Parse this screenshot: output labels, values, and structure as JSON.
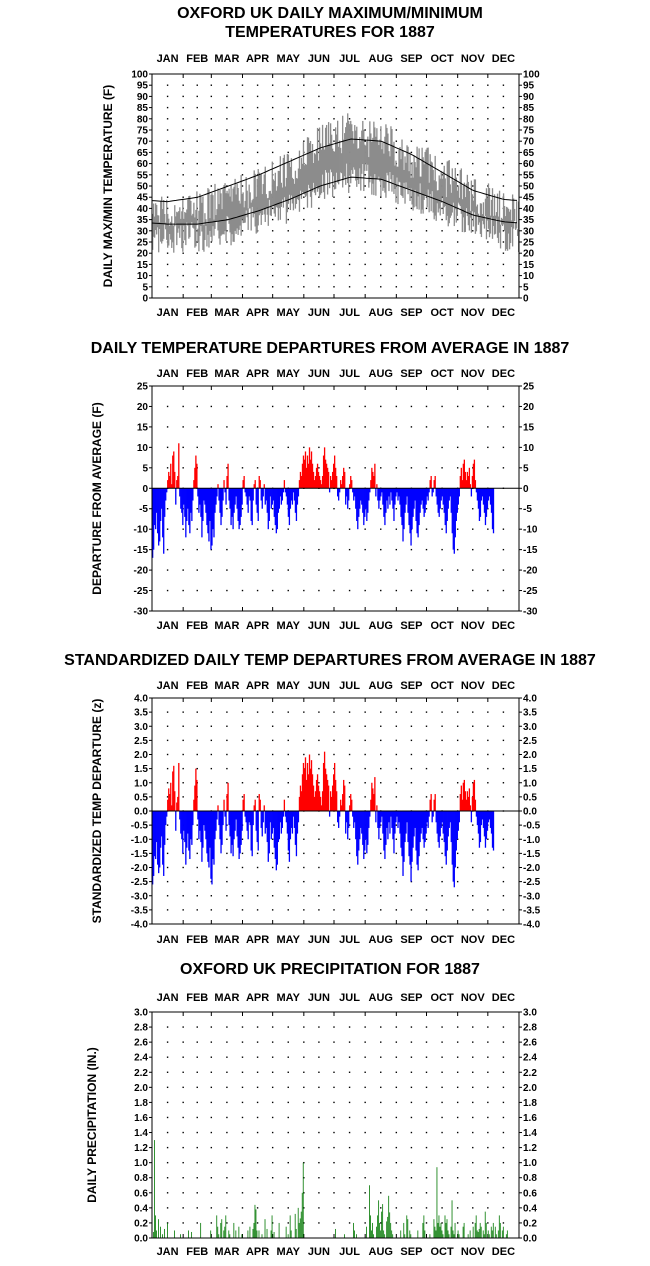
{
  "colors": {
    "range_fill": "#8c8c8c",
    "above_avg": "#ff0000",
    "below_avg": "#0000ff",
    "precip": "#007700",
    "normal_line": "#000000"
  },
  "months": [
    "JAN",
    "FEB",
    "MAR",
    "APR",
    "MAY",
    "JUN",
    "JUL",
    "AUG",
    "SEP",
    "OCT",
    "NOV",
    "DEC"
  ],
  "chart_data": [
    {
      "id": "maxmin",
      "type": "area",
      "title_lines": [
        "OXFORD UK DAILY MAXIMUM/MINIMUM",
        "TEMPERATURES FOR 1887"
      ],
      "ylabel": "DAILY MAX/MIN TEMPERATURE (F)",
      "ylim": [
        0,
        100
      ],
      "ytick_step": 5,
      "ytick_decimals": 0,
      "grid": "dotted",
      "series": [
        {
          "kind": "daily_max_min_band",
          "monthly_approx_max": [
            37,
            40,
            44,
            52,
            58,
            70,
            74,
            70,
            62,
            55,
            45,
            40
          ],
          "monthly_approx_min": [
            27,
            27,
            30,
            36,
            40,
            50,
            54,
            52,
            46,
            40,
            32,
            28
          ]
        },
        {
          "kind": "normal_high_curve",
          "monthly_values": [
            43,
            45,
            50,
            55,
            61,
            67,
            71,
            70,
            64,
            56,
            48,
            44
          ]
        },
        {
          "kind": "normal_low_curve",
          "monthly_values": [
            33,
            33,
            35,
            39,
            44,
            50,
            54,
            53,
            48,
            43,
            37,
            34
          ]
        }
      ]
    },
    {
      "id": "departure",
      "type": "bar",
      "title_lines": [
        "DAILY TEMPERATURE DEPARTURES FROM AVERAGE IN 1887"
      ],
      "ylabel": "DEPARTURE FROM AVERAGE (F)",
      "ylim": [
        -30,
        25
      ],
      "ytick_step": 5,
      "ytick_decimals": 0,
      "grid": "dotted",
      "values": [
        -17,
        -15,
        -9,
        -10,
        -6,
        -11,
        -14,
        -13,
        -8,
        -5,
        -12,
        -16,
        -7,
        -3,
        -1,
        2,
        4,
        3,
        6,
        1,
        8,
        9,
        4,
        -4,
        2,
        3,
        11,
        -2,
        -5,
        -6,
        -9,
        -4,
        -7,
        -12,
        -8,
        -5,
        -9,
        -11,
        -6,
        -8,
        -3,
        2,
        5,
        8,
        6,
        -2,
        -6,
        -4,
        -7,
        -12,
        -8,
        -3,
        -4,
        -6,
        -9,
        -11,
        -13,
        -8,
        -15,
        -14,
        -10,
        -12,
        -6,
        -4,
        -2,
        1,
        -3,
        -6,
        -9,
        -7,
        -3,
        2,
        -1,
        -4,
        3,
        6,
        -3,
        -5,
        -9,
        -7,
        -10,
        -6,
        -4,
        -2,
        -5,
        -8,
        -10,
        -9,
        -7,
        -4,
        2,
        3,
        -1,
        -2,
        -4,
        -6,
        -2,
        -3,
        -8,
        -9,
        -3,
        1,
        2,
        -4,
        -6,
        -8,
        3,
        2,
        -3,
        -5,
        -2,
        1,
        -4,
        -3,
        -6,
        -10,
        -8,
        -2,
        -5,
        -4,
        -3,
        -7,
        -9,
        -11,
        -10,
        -6,
        -5,
        -2,
        -4,
        -3,
        -1,
        2,
        -1,
        -2,
        -4,
        -7,
        -9,
        -5,
        -3,
        -4,
        -1,
        -3,
        -6,
        -8,
        -4,
        -2,
        2,
        4,
        3,
        6,
        8,
        7,
        9,
        5,
        8,
        6,
        10,
        7,
        9,
        6,
        4,
        2,
        3,
        5,
        6,
        4,
        3,
        2,
        1,
        3,
        8,
        10,
        7,
        6,
        5,
        4,
        -1,
        3,
        2,
        4,
        6,
        8,
        5,
        3,
        -2,
        -3,
        -1,
        2,
        1,
        3,
        5,
        4,
        -4,
        -2,
        -5,
        -3,
        1,
        3,
        2,
        -1,
        -3,
        -2,
        -5,
        -8,
        -10,
        -7,
        -5,
        -3,
        -4,
        -6,
        -9,
        -7,
        -5,
        -8,
        -6,
        -3,
        -1,
        2,
        5,
        4,
        3,
        6,
        -2,
        1,
        -3,
        -5,
        -3,
        -2,
        -1,
        -4,
        -7,
        -9,
        -6,
        -3,
        -5,
        -2,
        -4,
        -1,
        -3,
        -5,
        -8,
        -4,
        -2,
        -1,
        -3,
        -2,
        -4,
        -7,
        -9,
        -13,
        -10,
        -6,
        -4,
        -2,
        -6,
        -9,
        -11,
        -14,
        -10,
        -7,
        -5,
        -3,
        -8,
        -11,
        -12,
        -9,
        -6,
        -4,
        -3,
        -5,
        -7,
        -6,
        -4,
        -2,
        -3,
        -1,
        2,
        3,
        -2,
        -1,
        2,
        3,
        -2,
        -4,
        -6,
        -7,
        -5,
        -3,
        -2,
        -4,
        -6,
        -9,
        -11,
        -8,
        -5,
        -3,
        -2,
        -6,
        -11,
        -15,
        -16,
        -12,
        -8,
        -6,
        -4,
        -2,
        3,
        5,
        2,
        6,
        7,
        4,
        2,
        4,
        3,
        5,
        1,
        -2,
        3,
        6,
        7,
        2,
        -1,
        -3,
        -5,
        -8,
        -7,
        -3,
        -2,
        -4,
        -6,
        -9,
        -7,
        -5,
        -3,
        -2,
        -4,
        -6,
        -10,
        -11
      ]
    },
    {
      "id": "standardized",
      "type": "bar",
      "title_lines": [
        "STANDARDIZED DAILY TEMP DEPARTURES FROM AVERAGE IN 1887"
      ],
      "ylabel": "STANDARDIZED TEMP DEPARTURE (z)",
      "ylim": [
        -4.0,
        4.0
      ],
      "ytick_step": 0.5,
      "ytick_decimals": 1,
      "grid": "dotted",
      "values": [
        -2.6,
        -2.3,
        -1.6,
        -1.7,
        -1.1,
        -1.9,
        -2.2,
        -2.0,
        -1.3,
        -0.9,
        -1.9,
        -2.3,
        -1.2,
        -0.5,
        -0.2,
        0.4,
        0.8,
        0.6,
        1.0,
        0.2,
        1.4,
        1.6,
        0.7,
        -0.7,
        0.3,
        0.5,
        1.7,
        -0.3,
        -0.8,
        -1.0,
        -1.5,
        -0.7,
        -1.1,
        -1.9,
        -1.3,
        -0.8,
        -1.4,
        -1.7,
        -1.0,
        -1.2,
        -0.5,
        0.4,
        0.9,
        1.5,
        1.1,
        -0.3,
        -1.0,
        -0.7,
        -1.1,
        -1.8,
        -1.3,
        -0.5,
        -0.7,
        -1.0,
        -1.5,
        -1.8,
        -2.0,
        -1.3,
        -2.4,
        -2.6,
        -1.7,
        -1.9,
        -1.0,
        -0.7,
        -0.3,
        0.2,
        -0.5,
        -1.0,
        -1.5,
        -1.2,
        -0.5,
        0.4,
        -0.2,
        -0.7,
        0.6,
        1.0,
        -0.5,
        -0.9,
        -1.5,
        -1.2,
        -1.6,
        -1.0,
        -0.7,
        -0.3,
        -0.9,
        -1.3,
        -1.7,
        -1.5,
        -1.2,
        -0.7,
        0.4,
        0.6,
        -0.2,
        -0.4,
        -0.7,
        -1.0,
        -0.4,
        -0.5,
        -1.4,
        -1.6,
        -0.5,
        0.2,
        0.4,
        -0.7,
        -1.1,
        -1.4,
        0.6,
        0.4,
        -0.6,
        -0.9,
        -0.4,
        0.2,
        -0.8,
        -0.6,
        -1.1,
        -1.8,
        -1.5,
        -0.4,
        -1.0,
        -0.8,
        -0.6,
        -1.3,
        -1.7,
        -2.1,
        -1.9,
        -1.1,
        -1.0,
        -0.4,
        -0.8,
        -0.6,
        -0.2,
        0.4,
        -0.2,
        -0.4,
        -0.8,
        -1.4,
        -1.8,
        -1.0,
        -0.6,
        -0.8,
        -0.2,
        -0.6,
        -1.2,
        -1.6,
        -0.8,
        -0.4,
        0.5,
        0.9,
        0.7,
        1.3,
        1.7,
        1.5,
        1.9,
        1.1,
        1.7,
        1.3,
        2.0,
        1.5,
        1.8,
        1.3,
        0.9,
        0.5,
        0.7,
        1.1,
        1.3,
        0.9,
        0.7,
        0.5,
        0.2,
        0.7,
        1.7,
        2.1,
        1.5,
        1.3,
        1.1,
        0.9,
        -0.2,
        0.7,
        0.5,
        0.9,
        1.3,
        1.7,
        1.1,
        0.7,
        -0.4,
        -0.6,
        -0.2,
        0.4,
        0.2,
        0.6,
        1.1,
        0.9,
        -0.8,
        -0.4,
        -1.0,
        -0.6,
        0.2,
        0.6,
        0.4,
        -0.2,
        -0.6,
        -0.4,
        -1.0,
        -1.6,
        -1.9,
        -1.4,
        -1.0,
        -0.6,
        -0.8,
        -1.2,
        -1.7,
        -1.4,
        -1.0,
        -1.5,
        -1.2,
        -0.6,
        -0.2,
        0.4,
        1.0,
        0.8,
        0.6,
        1.2,
        -0.4,
        0.2,
        -0.6,
        -1.0,
        -0.6,
        -0.4,
        -0.2,
        -0.8,
        -1.4,
        -1.7,
        -1.2,
        -0.6,
        -1.0,
        -0.4,
        -0.8,
        -0.2,
        -0.6,
        -1.0,
        -1.5,
        -0.8,
        -0.4,
        -0.2,
        -0.6,
        -0.4,
        -0.8,
        -1.3,
        -1.6,
        -2.3,
        -1.8,
        -1.1,
        -0.8,
        -0.4,
        -1.1,
        -1.6,
        -1.9,
        -2.5,
        -1.8,
        -1.3,
        -0.9,
        -0.6,
        -1.4,
        -1.9,
        -2.1,
        -1.6,
        -1.1,
        -0.8,
        -0.6,
        -1.0,
        -1.3,
        -1.1,
        -0.8,
        -0.4,
        -0.6,
        -0.2,
        0.4,
        0.6,
        -0.4,
        -0.2,
        0.4,
        0.6,
        -0.4,
        -0.8,
        -1.1,
        -1.3,
        -0.9,
        -0.6,
        -0.4,
        -0.8,
        -1.1,
        -1.6,
        -1.9,
        -1.4,
        -0.9,
        -0.6,
        -0.4,
        -1.1,
        -1.9,
        -2.5,
        -2.7,
        -2.0,
        -1.4,
        -1.0,
        -0.7,
        -0.4,
        0.6,
        0.9,
        0.4,
        1.0,
        1.1,
        0.7,
        0.4,
        0.7,
        0.5,
        0.8,
        0.2,
        -0.4,
        0.5,
        1.0,
        1.1,
        0.4,
        -0.2,
        -0.5,
        -0.8,
        -1.3,
        -1.1,
        -0.5,
        -0.3,
        -0.6,
        -0.9,
        -1.3,
        -1.0,
        -0.7,
        -0.4,
        -0.3,
        -0.6,
        -0.8,
        -1.3,
        -1.4
      ]
    },
    {
      "id": "precip",
      "type": "bar",
      "title_lines": [
        "OXFORD UK PRECIPITATION FOR 1887"
      ],
      "ylabel": "DAILY PRECIPITATION (IN.)",
      "ylim": [
        0,
        3.0
      ],
      "ytick_step": 0.2,
      "ytick_decimals": 1,
      "grid": "dotted",
      "values": [
        0,
        0.08,
        1.3,
        0.3,
        0.1,
        0,
        0.25,
        0,
        0.15,
        0,
        0.05,
        0,
        0.12,
        0,
        0,
        0.2,
        0,
        0,
        0,
        0,
        0,
        0,
        0.1,
        0,
        0,
        0,
        0,
        0,
        0.05,
        0,
        0,
        0,
        0,
        0,
        0,
        0,
        0.1,
        0,
        0,
        0.08,
        0,
        0,
        0,
        0,
        0,
        0,
        0,
        0,
        0.2,
        0,
        0,
        0,
        0,
        0,
        0,
        0,
        0,
        0,
        0.1,
        0,
        0,
        0,
        0,
        0,
        0.3,
        0.15,
        0.05,
        0,
        0.2,
        0.25,
        0,
        0.1,
        0.15,
        0.3,
        0,
        0,
        0.1,
        0.05,
        0,
        0,
        0,
        0.2,
        0,
        0.1,
        0,
        0,
        0.15,
        0,
        0,
        0.05,
        0,
        0,
        0,
        0,
        0,
        0.1,
        0,
        0.15,
        0,
        0,
        0.12,
        0.2,
        0.44,
        0.38,
        0.1,
        0,
        0.1,
        0,
        0,
        0.05,
        0,
        0,
        0.25,
        0,
        0.12,
        0,
        0,
        0,
        0.1,
        0.3,
        0,
        0.08,
        0,
        0,
        0,
        0,
        0.2,
        0,
        0,
        0,
        0,
        0,
        0,
        0.15,
        0,
        0.05,
        0,
        0.3,
        0.1,
        0,
        0,
        0,
        0.32,
        0.12,
        0,
        0.4,
        0.2,
        0.26,
        0.35,
        0.6,
        1.0,
        0,
        0,
        0,
        0,
        0,
        0,
        0,
        0,
        0,
        0,
        0,
        0,
        0,
        0,
        0,
        0,
        0,
        0,
        0,
        0,
        0,
        0,
        0,
        0,
        0,
        0,
        0,
        0,
        0,
        0,
        0,
        0.12,
        0,
        0,
        0,
        0,
        0,
        0,
        0,
        0,
        0.05,
        0,
        0,
        0,
        0,
        0,
        0,
        0,
        0,
        0.2,
        0.1,
        0,
        0.05,
        0,
        0,
        0,
        0,
        0,
        0,
        0,
        0,
        0,
        0.15,
        0,
        0,
        0.7,
        0.3,
        0.1,
        0.2,
        0.05,
        0,
        0,
        0.15,
        0.3,
        0.5,
        0.2,
        0.1,
        0.35,
        0.45,
        0.1,
        0.05,
        0,
        0.22,
        0.28,
        0.56,
        0.34,
        0.2,
        0.1,
        0.05,
        0,
        0,
        0,
        0,
        0,
        0,
        0,
        0.1,
        0,
        0,
        0.2,
        0.05,
        0,
        0.3,
        0.25,
        0,
        0.1,
        0.05,
        0,
        0,
        0,
        0,
        0,
        0,
        0.1,
        0,
        0,
        0,
        0,
        0.2,
        0.3,
        0.1,
        0,
        0,
        0,
        0,
        0.05,
        0,
        0,
        0,
        0.25,
        0.15,
        0.1,
        0.94,
        0.2,
        0.3,
        0.15,
        0.2,
        0.1,
        0.05,
        0,
        0.3,
        0.2,
        0.25,
        0.1,
        0.05,
        0,
        0.15,
        0.5,
        0.1,
        0.05,
        0.2,
        0,
        0,
        0.1,
        0.05,
        0,
        0,
        0,
        0.15,
        0.2,
        0,
        0,
        0,
        0.05,
        0,
        0.1,
        0,
        0,
        0.15,
        0,
        0.2,
        0.3,
        0.1,
        0.08,
        0.12,
        0.2,
        0.15,
        0,
        0.1,
        0.05,
        0.35,
        0.2,
        0,
        0.1,
        0.05,
        0,
        0.15,
        0.1,
        0.2,
        0,
        0.15,
        0.05,
        0,
        0.1,
        0.3,
        0.2,
        0,
        0.1,
        0.15,
        0,
        0,
        0.05,
        0.1
      ]
    }
  ]
}
